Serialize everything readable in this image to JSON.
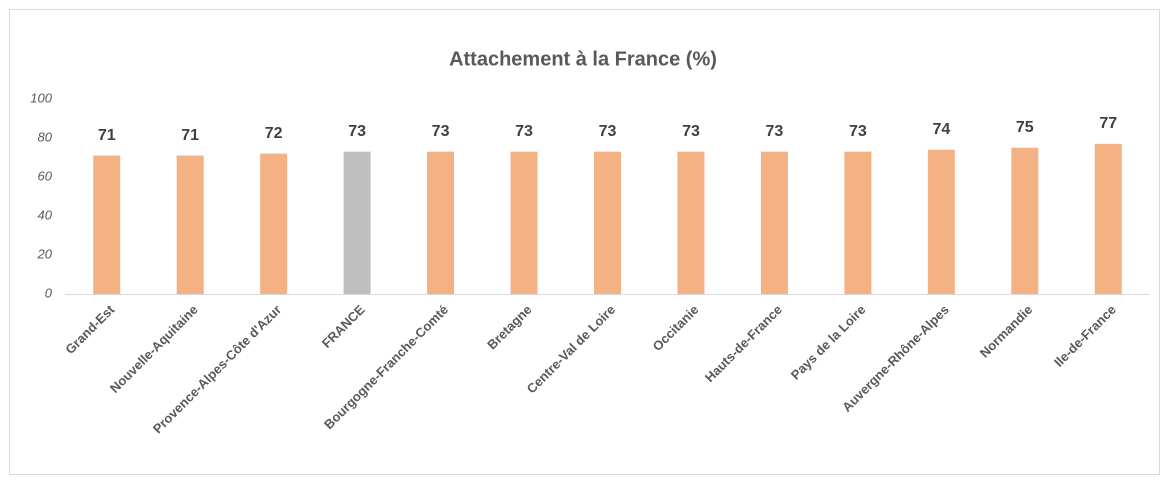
{
  "chart_data": {
    "type": "bar",
    "title": "Attachement à la France (%)",
    "categories": [
      "Grand-Est",
      "Nouvelle-Aquitaine",
      "Provence-Alpes-Côte d'Azur",
      "FRANCE",
      "Bourgogne-Franche-Comté",
      "Bretagne",
      "Centre-Val de Loire",
      "Occitanie",
      "Hauts-de-France",
      "Pays de la Loire",
      "Auvergne-Rhône-Alpes",
      "Normandie",
      "Ile-de-France"
    ],
    "values": [
      71,
      71,
      72,
      73,
      73,
      73,
      73,
      73,
      73,
      73,
      74,
      75,
      77
    ],
    "colors": [
      "#f4b183",
      "#f4b183",
      "#f4b183",
      "#bfbfbf",
      "#f4b183",
      "#f4b183",
      "#f4b183",
      "#f4b183",
      "#f4b183",
      "#f4b183",
      "#f4b183",
      "#f4b183",
      "#f4b183"
    ],
    "ylim": [
      0,
      100
    ],
    "yticks": [
      0,
      20,
      40,
      60,
      80,
      100
    ],
    "grid": false
  }
}
